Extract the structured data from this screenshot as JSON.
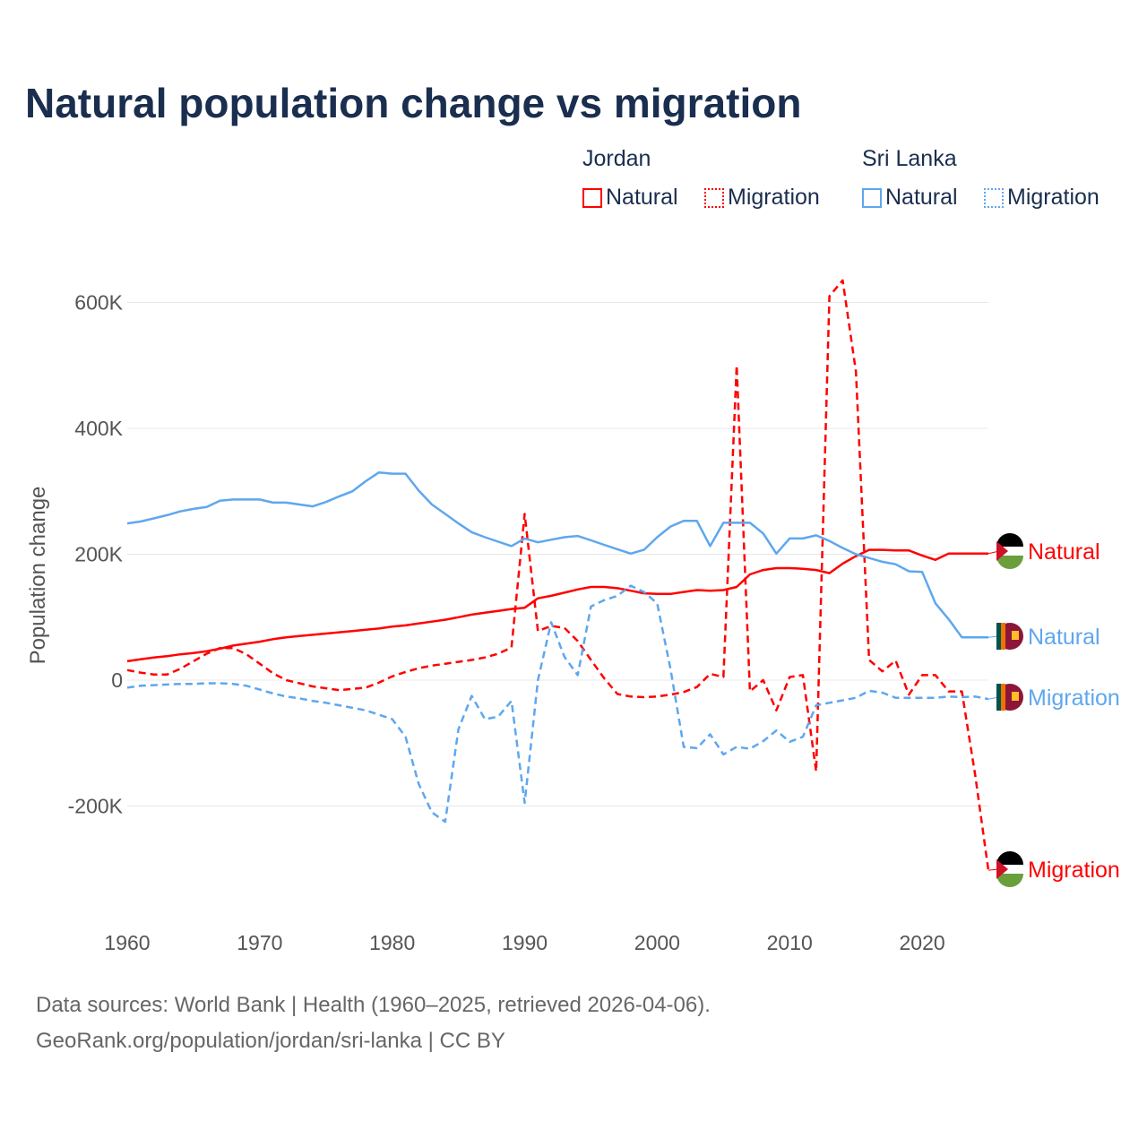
{
  "chart_data": {
    "type": "line",
    "title": "Natural population change vs migration",
    "ylabel": "Population change",
    "xlabel": "",
    "ylim": [
      -300000,
      650000
    ],
    "xlim": [
      1960,
      2025
    ],
    "yticks": [
      {
        "v": -200000,
        "label": "-200K"
      },
      {
        "v": 0,
        "label": "0"
      },
      {
        "v": 200000,
        "label": "200K"
      },
      {
        "v": 400000,
        "label": "400K"
      },
      {
        "v": 600000,
        "label": "600K"
      }
    ],
    "xticks": [
      1960,
      1970,
      1980,
      1990,
      2000,
      2010,
      2020
    ],
    "legend": {
      "groups": [
        {
          "name": "Jordan",
          "items": [
            "Natural",
            "Migration"
          ]
        },
        {
          "name": "Sri Lanka",
          "items": [
            "Natural",
            "Migration"
          ]
        }
      ],
      "placement": "top-right"
    },
    "colors": {
      "jordan": "#ff0000",
      "srilanka": "#5ea7ee"
    },
    "x_start": 1960,
    "series": [
      {
        "name": "Jordan Natural",
        "country": "jordan",
        "kind": "natural",
        "end_label": "Natural",
        "values": [
          30,
          33,
          36,
          38,
          41,
          43,
          46,
          50,
          55,
          58,
          61,
          65,
          68,
          70,
          72,
          74,
          76,
          78,
          80,
          82,
          85,
          87,
          90,
          93,
          96,
          100,
          104,
          107,
          110,
          113,
          115,
          130,
          134,
          139,
          144,
          148,
          148,
          146,
          142,
          138,
          137,
          137,
          140,
          143,
          142,
          143,
          148,
          168,
          175,
          178,
          178,
          177,
          175,
          170,
          185,
          197,
          207,
          207,
          206,
          206,
          198,
          191,
          201,
          201,
          201,
          201
        ]
      },
      {
        "name": "Jordan Migration",
        "country": "jordan",
        "kind": "migration",
        "end_label": "Migration",
        "values": [
          16,
          12,
          9,
          9,
          18,
          30,
          42,
          51,
          51,
          41,
          26,
          11,
          0,
          -5,
          -10,
          -13,
          -16,
          -14,
          -12,
          -4,
          6,
          13,
          19,
          23,
          26,
          29,
          32,
          36,
          42,
          52,
          264,
          78,
          86,
          83,
          62,
          32,
          3,
          -22,
          -26,
          -27,
          -26,
          -23,
          -19,
          -11,
          10,
          5,
          500,
          -18,
          0,
          -48,
          5,
          8,
          -145,
          610,
          635,
          490,
          32,
          14,
          31,
          -23,
          8,
          8,
          -18,
          -18,
          -150,
          -302
        ]
      },
      {
        "name": "Sri Lanka Natural",
        "country": "srilanka",
        "kind": "natural",
        "end_label": "Natural",
        "values": [
          249,
          252,
          257,
          262,
          268,
          272,
          275,
          285,
          287,
          287,
          287,
          282,
          282,
          279,
          276,
          283,
          292,
          300,
          316,
          330,
          328,
          328,
          301,
          279,
          264,
          249,
          235,
          227,
          220,
          213,
          225,
          219,
          223,
          227,
          229,
          222,
          215,
          208,
          201,
          207,
          227,
          244,
          253,
          253,
          213,
          250,
          250,
          250,
          233,
          201,
          225,
          225,
          230,
          221,
          210,
          200,
          194,
          188,
          184,
          173,
          172,
          122,
          97,
          68,
          68,
          68
        ]
      },
      {
        "name": "Sri Lanka Migration",
        "country": "srilanka",
        "kind": "migration",
        "end_label": "Migration",
        "values": [
          -12,
          -9,
          -8,
          -7,
          -6,
          -6,
          -5,
          -5,
          -6,
          -9,
          -15,
          -21,
          -26,
          -29,
          -33,
          -36,
          -40,
          -44,
          -48,
          -55,
          -62,
          -90,
          -165,
          -210,
          -225,
          -78,
          -25,
          -62,
          -58,
          -33,
          -195,
          0,
          92,
          37,
          8,
          117,
          127,
          134,
          150,
          140,
          122,
          18,
          -106,
          -108,
          -86,
          -118,
          -106,
          -109,
          -97,
          -80,
          -98,
          -90,
          -40,
          -36,
          -32,
          -28,
          -17,
          -20,
          -28,
          -28,
          -28,
          -28,
          -26,
          -27,
          -26,
          -30
        ]
      }
    ],
    "value_unit": "thousands"
  },
  "footer": {
    "line1": "Data sources: World Bank | Health (1960–2025, retrieved 2026-04-06).",
    "line2": "GeoRank.org/population/jordan/sri-lanka | CC BY"
  }
}
